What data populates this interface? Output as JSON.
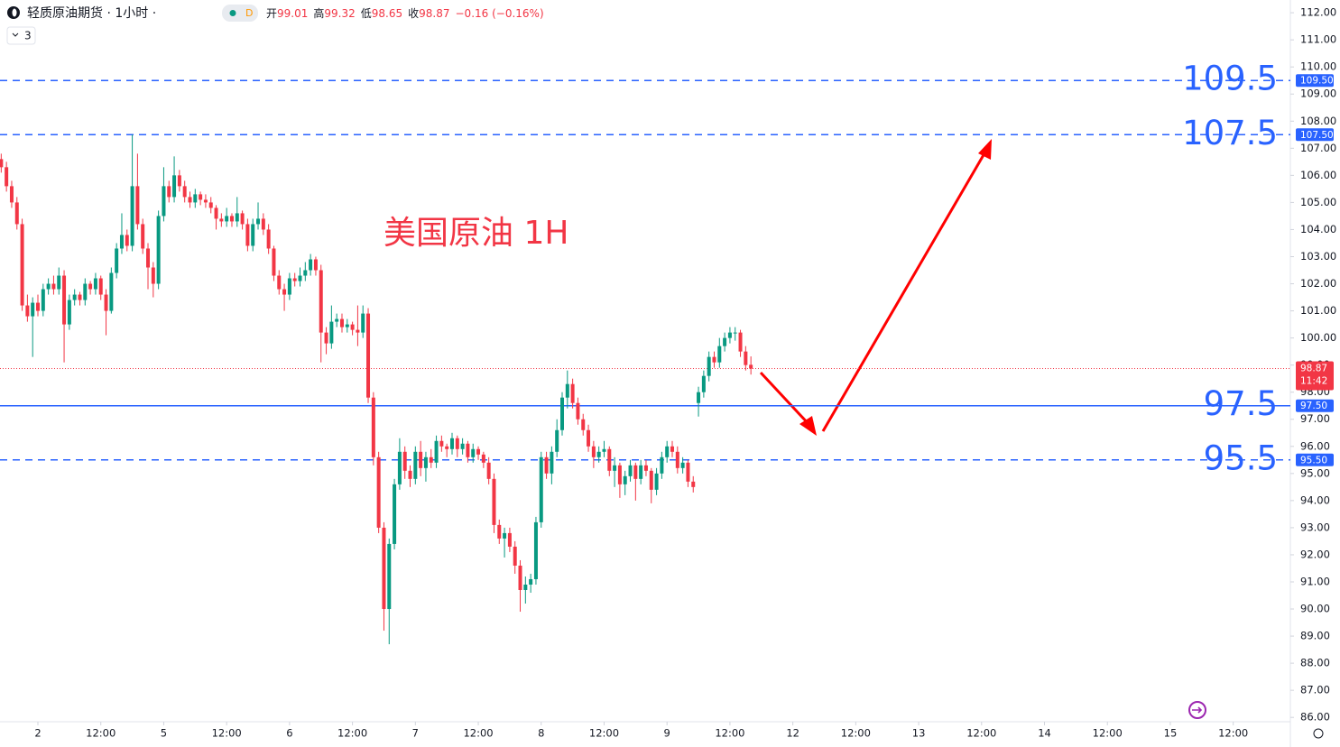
{
  "chart_data": {
    "type": "candlestick",
    "title": "轻质原油期货 · 1小时 ·",
    "badge": "D",
    "interval_count": "3",
    "header_stats": [
      {
        "label": "开",
        "value": "99.01"
      },
      {
        "label": "高",
        "value": "99.32"
      },
      {
        "label": "低",
        "value": "98.65"
      },
      {
        "label": "收",
        "value": "98.87"
      },
      {
        "label": "",
        "value": "−0.16 (−0.16%)"
      }
    ],
    "annotation": "美国原油 1H",
    "up_color": "#089981",
    "down_color": "#f23645",
    "level_color": "#2962ff",
    "xlim": [
      -7.23,
      238.9
    ],
    "ylim": [
      85.84,
      112.47
    ],
    "xticks": [
      {
        "value": 0,
        "label": "2"
      },
      {
        "value": 12,
        "label": "12:00"
      },
      {
        "value": 24,
        "label": "5"
      },
      {
        "value": 36,
        "label": "12:00"
      },
      {
        "value": 48,
        "label": "6"
      },
      {
        "value": 60,
        "label": "12:00"
      },
      {
        "value": 72,
        "label": "7"
      },
      {
        "value": 84,
        "label": "12:00"
      },
      {
        "value": 96,
        "label": "8"
      },
      {
        "value": 108,
        "label": "12:00"
      },
      {
        "value": 120,
        "label": "9"
      },
      {
        "value": 132,
        "label": "12:00"
      },
      {
        "value": 144,
        "label": "12"
      },
      {
        "value": 156,
        "label": "12:00"
      },
      {
        "value": 168,
        "label": "13"
      },
      {
        "value": 180,
        "label": "12:00"
      },
      {
        "value": 192,
        "label": "14"
      },
      {
        "value": 204,
        "label": "12:00"
      },
      {
        "value": 216,
        "label": "15"
      },
      {
        "value": 228,
        "label": "12:00"
      }
    ],
    "yticks": [
      {
        "value": 86,
        "label": "86.00"
      },
      {
        "value": 87,
        "label": "87.00"
      },
      {
        "value": 88,
        "label": "88.00"
      },
      {
        "value": 89,
        "label": "89.00"
      },
      {
        "value": 90,
        "label": "90.00"
      },
      {
        "value": 91,
        "label": "91.00"
      },
      {
        "value": 92,
        "label": "92.00"
      },
      {
        "value": 93,
        "label": "93.00"
      },
      {
        "value": 94,
        "label": "94.00"
      },
      {
        "value": 95,
        "label": "95.00"
      },
      {
        "value": 96,
        "label": "96.00"
      },
      {
        "value": 97,
        "label": "97.00"
      },
      {
        "value": 98,
        "label": "98.00"
      },
      {
        "value": 99,
        "label": "99.00"
      },
      {
        "value": 100,
        "label": "100.00"
      },
      {
        "value": 101,
        "label": "101.00"
      },
      {
        "value": 102,
        "label": "102.00"
      },
      {
        "value": 103,
        "label": "103.00"
      },
      {
        "value": 104,
        "label": "104.00"
      },
      {
        "value": 105,
        "label": "105.00"
      },
      {
        "value": 106,
        "label": "106.00"
      },
      {
        "value": 107,
        "label": "107.00"
      },
      {
        "value": 108,
        "label": "108.00"
      },
      {
        "value": 109,
        "label": "109.00"
      },
      {
        "value": 110,
        "label": "110.00"
      },
      {
        "value": 111,
        "label": "111.00"
      },
      {
        "value": 112,
        "label": "112.00"
      }
    ],
    "levels": [
      {
        "value": 109.5,
        "tag": "109.50",
        "style": "dashed"
      },
      {
        "value": 107.5,
        "tag": "107.50",
        "style": "dashed"
      },
      {
        "value": 97.5,
        "tag": "97.50",
        "style": "solid"
      },
      {
        "value": 95.5,
        "tag": "95.50",
        "style": "dashed"
      }
    ],
    "last": {
      "value": 98.87,
      "time": "11:42",
      "color": "#f23645"
    },
    "x": [
      -7,
      -6,
      -5,
      -4,
      -3,
      -2,
      -1,
      0,
      1,
      2,
      3,
      4,
      5,
      6,
      7,
      8,
      9,
      10,
      11,
      12,
      13,
      14,
      15,
      16,
      17,
      18,
      19,
      20,
      21,
      22,
      23,
      24,
      25,
      26,
      27,
      28,
      29,
      30,
      31,
      32,
      33,
      34,
      35,
      36,
      37,
      38,
      39,
      40,
      41,
      42,
      43,
      44,
      45,
      46,
      47,
      48,
      49,
      50,
      51,
      52,
      53,
      54,
      55,
      56,
      57,
      58,
      59,
      60,
      61,
      62,
      63,
      64,
      65,
      66,
      67,
      68,
      69,
      70,
      71,
      72,
      73,
      74,
      75,
      76,
      77,
      78,
      79,
      80,
      81,
      82,
      83,
      84,
      85,
      86,
      87,
      88,
      89,
      90,
      91,
      92,
      93,
      94,
      95,
      96,
      97,
      98,
      99,
      100,
      101,
      102,
      103,
      104,
      105,
      106,
      107,
      108,
      109,
      110,
      111,
      112,
      113,
      114,
      115,
      116,
      117,
      118,
      119,
      120,
      121,
      122,
      123,
      124,
      125,
      126,
      127,
      128,
      129,
      130,
      131,
      132,
      133,
      134,
      135,
      136
    ],
    "values": [
      [
        106.6,
        106.8,
        106.1,
        106.3
      ],
      [
        106.3,
        106.5,
        105.4,
        105.6
      ],
      [
        105.6,
        105.8,
        104.8,
        105.0
      ],
      [
        105.0,
        105.2,
        104.0,
        104.2
      ],
      [
        104.2,
        104.4,
        101.0,
        101.2
      ],
      [
        101.2,
        101.6,
        100.6,
        100.8
      ],
      [
        100.8,
        101.5,
        99.3,
        101.3
      ],
      [
        101.3,
        101.6,
        100.8,
        101.0
      ],
      [
        101.0,
        102.0,
        100.8,
        101.8
      ],
      [
        101.8,
        102.2,
        101.6,
        102.0
      ],
      [
        102.0,
        102.3,
        101.6,
        101.8
      ],
      [
        101.8,
        102.6,
        101.6,
        102.3
      ],
      [
        102.3,
        102.5,
        99.1,
        100.5
      ],
      [
        100.5,
        101.6,
        100.3,
        101.4
      ],
      [
        101.4,
        101.8,
        101.2,
        101.6
      ],
      [
        101.6,
        101.7,
        101.2,
        101.4
      ],
      [
        101.4,
        102.2,
        101.2,
        102.0
      ],
      [
        102.0,
        102.1,
        101.6,
        101.8
      ],
      [
        101.8,
        102.4,
        101.6,
        102.2
      ],
      [
        102.2,
        102.3,
        101.4,
        101.6
      ],
      [
        101.6,
        101.8,
        100.1,
        101.0
      ],
      [
        101.0,
        102.6,
        100.9,
        102.4
      ],
      [
        102.4,
        103.5,
        102.2,
        103.3
      ],
      [
        103.3,
        104.6,
        103.1,
        103.8
      ],
      [
        103.8,
        104.0,
        103.2,
        103.4
      ],
      [
        103.4,
        107.5,
        103.2,
        105.6
      ],
      [
        105.6,
        106.8,
        104.0,
        104.2
      ],
      [
        104.2,
        104.4,
        103.1,
        103.3
      ],
      [
        103.3,
        103.5,
        101.8,
        102.6
      ],
      [
        102.6,
        102.8,
        101.5,
        102.0
      ],
      [
        102.0,
        104.7,
        101.8,
        104.5
      ],
      [
        104.5,
        106.3,
        104.3,
        105.6
      ],
      [
        105.6,
        105.8,
        105.0,
        105.2
      ],
      [
        105.2,
        106.7,
        105.0,
        106.0
      ],
      [
        106.0,
        106.2,
        105.4,
        105.6
      ],
      [
        105.6,
        105.8,
        105.0,
        105.2
      ],
      [
        105.2,
        105.4,
        104.8,
        105.0
      ],
      [
        105.0,
        105.5,
        104.8,
        105.3
      ],
      [
        105.3,
        105.4,
        104.9,
        105.1
      ],
      [
        105.1,
        105.3,
        104.8,
        105.0
      ],
      [
        105.0,
        105.2,
        104.6,
        104.8
      ],
      [
        104.8,
        104.9,
        104.0,
        104.4
      ],
      [
        104.4,
        104.6,
        104.1,
        104.3
      ],
      [
        104.3,
        104.8,
        104.1,
        104.5
      ],
      [
        104.5,
        104.6,
        104.1,
        104.3
      ],
      [
        104.3,
        105.2,
        104.1,
        104.6
      ],
      [
        104.6,
        104.7,
        104.0,
        104.2
      ],
      [
        104.2,
        104.4,
        103.2,
        103.4
      ],
      [
        103.4,
        104.4,
        103.2,
        104.2
      ],
      [
        104.2,
        105.0,
        104.0,
        104.4
      ],
      [
        104.4,
        104.6,
        103.8,
        104.0
      ],
      [
        104.0,
        104.2,
        103.1,
        103.3
      ],
      [
        103.3,
        103.4,
        102.1,
        102.3
      ],
      [
        102.3,
        102.5,
        101.6,
        101.8
      ],
      [
        101.8,
        102.0,
        101.0,
        101.6
      ],
      [
        101.6,
        102.4,
        101.4,
        102.2
      ],
      [
        102.2,
        102.4,
        101.9,
        102.1
      ],
      [
        102.1,
        102.6,
        101.9,
        102.3
      ],
      [
        102.3,
        102.8,
        102.1,
        102.5
      ],
      [
        102.5,
        103.1,
        102.3,
        102.9
      ],
      [
        102.9,
        103.0,
        102.3,
        102.5
      ],
      [
        102.5,
        102.7,
        99.1,
        100.2
      ],
      [
        100.2,
        100.4,
        99.4,
        99.8
      ],
      [
        99.8,
        101.2,
        99.6,
        100.6
      ],
      [
        100.6,
        100.9,
        100.4,
        100.7
      ],
      [
        100.7,
        100.9,
        100.2,
        100.4
      ],
      [
        100.4,
        100.7,
        100.2,
        100.5
      ],
      [
        100.5,
        100.6,
        100.1,
        100.3
      ],
      [
        100.3,
        101.2,
        99.7,
        100.2
      ],
      [
        100.2,
        101.2,
        100.0,
        100.9
      ],
      [
        100.9,
        101.1,
        97.6,
        97.8
      ],
      [
        97.8,
        98.0,
        95.3,
        95.6
      ],
      [
        95.6,
        95.8,
        92.8,
        93.0
      ],
      [
        93.0,
        93.2,
        89.2,
        90.0
      ],
      [
        90.0,
        92.6,
        88.7,
        92.4
      ],
      [
        92.4,
        94.8,
        92.2,
        94.6
      ],
      [
        94.6,
        96.3,
        94.4,
        95.8
      ],
      [
        95.8,
        96.0,
        94.8,
        95.1
      ],
      [
        95.1,
        95.3,
        94.5,
        94.8
      ],
      [
        94.8,
        96.0,
        94.6,
        95.8
      ],
      [
        95.8,
        96.2,
        94.9,
        95.2
      ],
      [
        95.2,
        95.8,
        94.7,
        95.6
      ],
      [
        95.6,
        95.9,
        95.2,
        95.4
      ],
      [
        95.4,
        96.4,
        95.2,
        96.2
      ],
      [
        96.2,
        96.4,
        95.8,
        96.0
      ],
      [
        96.0,
        96.1,
        95.6,
        95.9
      ],
      [
        95.9,
        96.5,
        95.7,
        96.3
      ],
      [
        96.3,
        96.4,
        95.6,
        95.9
      ],
      [
        95.9,
        96.3,
        95.7,
        96.1
      ],
      [
        96.1,
        96.2,
        95.4,
        95.6
      ],
      [
        95.6,
        96.1,
        95.4,
        95.9
      ],
      [
        95.9,
        96.0,
        95.5,
        95.7
      ],
      [
        95.7,
        95.8,
        95.2,
        95.4
      ],
      [
        95.4,
        95.6,
        94.6,
        94.8
      ],
      [
        94.8,
        95.0,
        92.8,
        93.1
      ],
      [
        93.1,
        93.3,
        92.4,
        92.6
      ],
      [
        92.6,
        93.0,
        91.9,
        92.8
      ],
      [
        92.8,
        93.0,
        92.1,
        92.3
      ],
      [
        92.3,
        92.5,
        91.3,
        91.6
      ],
      [
        91.6,
        91.8,
        89.9,
        90.7
      ],
      [
        90.7,
        91.2,
        90.2,
        90.9
      ],
      [
        90.9,
        91.3,
        90.6,
        91.1
      ],
      [
        91.1,
        93.4,
        90.9,
        93.2
      ],
      [
        93.2,
        95.8,
        93.0,
        95.6
      ],
      [
        95.6,
        95.8,
        94.8,
        95.0
      ],
      [
        95.0,
        96.0,
        94.6,
        95.8
      ],
      [
        95.8,
        97.0,
        95.6,
        96.6
      ],
      [
        96.6,
        98.0,
        96.4,
        97.8
      ],
      [
        97.8,
        98.8,
        97.4,
        98.3
      ],
      [
        98.3,
        98.5,
        97.4,
        97.6
      ],
      [
        97.6,
        97.8,
        96.8,
        97.0
      ],
      [
        97.0,
        97.2,
        96.4,
        96.6
      ],
      [
        96.6,
        96.8,
        95.8,
        96.0
      ],
      [
        96.0,
        96.2,
        95.2,
        95.6
      ],
      [
        95.6,
        96.0,
        95.4,
        95.8
      ],
      [
        95.8,
        96.2,
        95.6,
        95.9
      ],
      [
        95.9,
        96.0,
        94.9,
        95.1
      ],
      [
        95.1,
        95.6,
        94.5,
        95.3
      ],
      [
        95.3,
        95.4,
        94.1,
        94.6
      ],
      [
        94.6,
        95.1,
        94.2,
        94.9
      ],
      [
        94.9,
        95.5,
        94.7,
        95.3
      ],
      [
        95.3,
        95.4,
        94.0,
        94.8
      ],
      [
        94.8,
        95.5,
        94.6,
        95.3
      ],
      [
        95.3,
        95.5,
        94.9,
        95.1
      ],
      [
        95.1,
        95.2,
        93.9,
        94.4
      ],
      [
        94.4,
        95.2,
        94.2,
        95.0
      ],
      [
        95.0,
        95.8,
        94.8,
        95.6
      ],
      [
        95.6,
        96.2,
        95.4,
        96.0
      ],
      [
        96.0,
        96.2,
        95.6,
        95.8
      ],
      [
        95.8,
        96.0,
        95.0,
        95.2
      ],
      [
        95.2,
        95.6,
        95.0,
        95.4
      ],
      [
        95.4,
        95.5,
        94.5,
        94.7
      ],
      [
        94.7,
        94.9,
        94.3,
        94.5
      ],
      [
        97.6,
        98.2,
        97.1,
        98.0
      ],
      [
        98.0,
        98.8,
        97.8,
        98.6
      ],
      [
        98.6,
        99.5,
        98.4,
        99.3
      ],
      [
        99.3,
        99.5,
        98.9,
        99.1
      ],
      [
        99.1,
        100.0,
        98.9,
        99.7
      ],
      [
        99.7,
        100.2,
        99.5,
        100.0
      ],
      [
        100.0,
        100.4,
        99.8,
        100.2
      ],
      [
        100.2,
        100.4,
        99.9,
        100.2
      ],
      [
        100.2,
        100.3,
        99.3,
        99.5
      ],
      [
        99.5,
        99.7,
        98.8,
        99.0
      ],
      [
        99.01,
        99.32,
        98.65,
        98.87
      ]
    ]
  }
}
